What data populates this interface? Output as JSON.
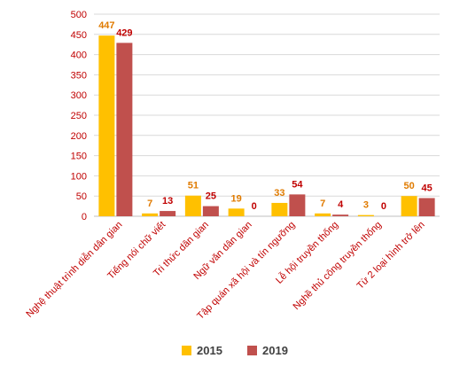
{
  "chart_data": {
    "type": "bar",
    "categories": [
      "Nghệ thuật trình diễn dân gian",
      "Tiếng nói chữ viết",
      "Tri thức dân gian",
      "Ngữ văn dân gian",
      "Tập quán xã hội và tín ngưỡng",
      "Lễ hội truyền thống",
      "Nghề thủ công truyền thống",
      "Từ 2 loại hình trở lên"
    ],
    "series": [
      {
        "name": "2015",
        "values": [
          447,
          7,
          51,
          19,
          33,
          7,
          3,
          50
        ],
        "color": "#FFC000",
        "label_color": "#E07B00"
      },
      {
        "name": "2019",
        "values": [
          429,
          13,
          25,
          0,
          54,
          4,
          0,
          45
        ],
        "color": "#C0504D",
        "label_color": "#C00000"
      }
    ],
    "ylim": [
      0,
      500
    ],
    "yticks": [
      0,
      50,
      100,
      150,
      200,
      250,
      300,
      350,
      400,
      450,
      500
    ],
    "axis_label_color": "#C00000",
    "grid": true,
    "legend_position": "bottom"
  }
}
